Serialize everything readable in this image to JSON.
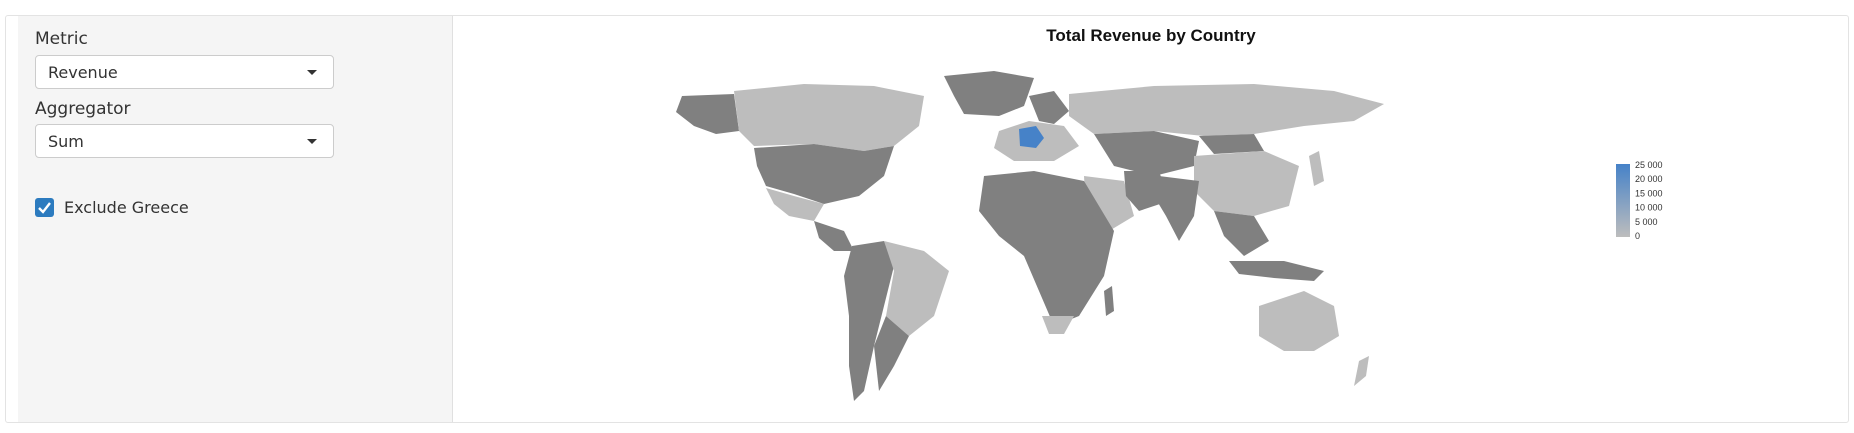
{
  "controls": {
    "metric": {
      "label": "Metric",
      "value": "Revenue"
    },
    "aggregator": {
      "label": "Aggregator",
      "value": "Sum"
    },
    "exclude_greece": {
      "label": "Exclude Greece",
      "checked": true
    }
  },
  "map": {
    "title": "Total Revenue by Country",
    "legend": {
      "ticks": [
        "25 000",
        "20 000",
        "15 000",
        "10 000",
        "5 000",
        "0"
      ],
      "min": 0,
      "max": 25000,
      "low_color": "#bdbdbd",
      "high_color": "#4682c8",
      "no_data_color": "#808080"
    },
    "countries": {
      "Germany": 25000,
      "Greenland": null,
      "Canada": 0,
      "USA": null,
      "Brazil": 0,
      "Russia": 0,
      "China": 0,
      "Australia": 0
    }
  }
}
